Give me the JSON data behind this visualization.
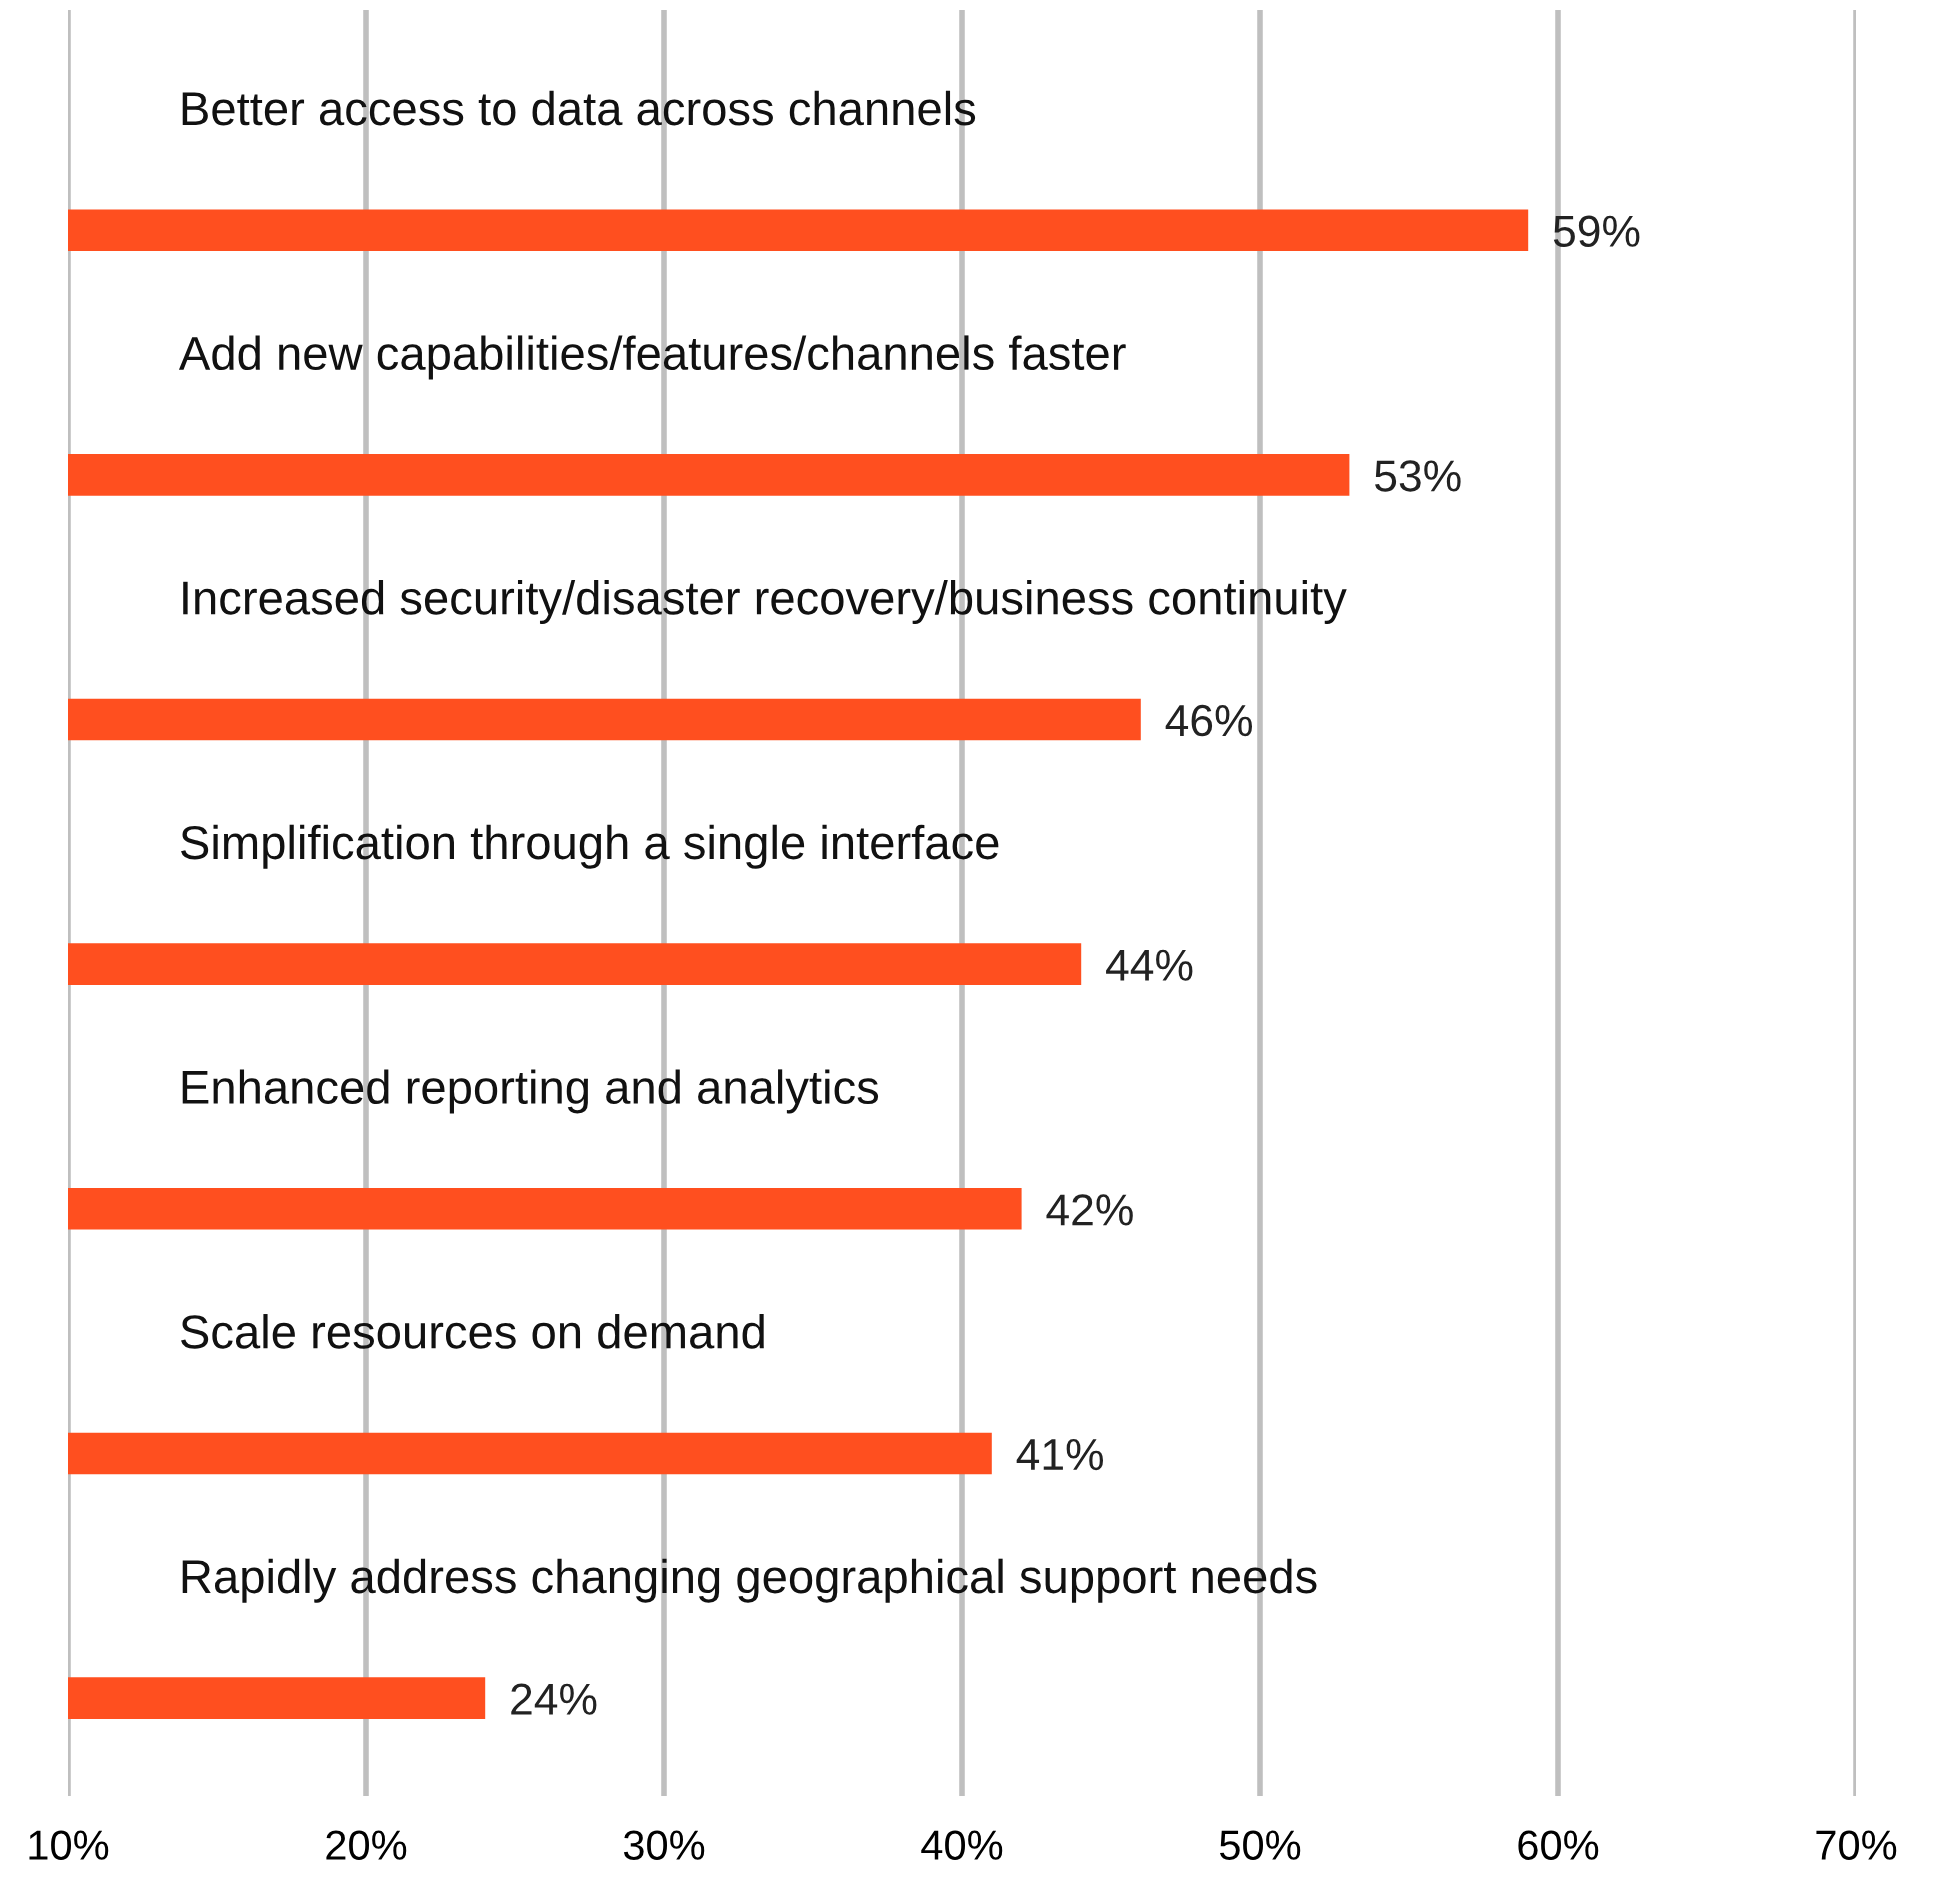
{
  "chart_data": {
    "type": "bar",
    "orientation": "horizontal",
    "categories": [
      "Better access to data across channels",
      "Add new capabilities/features/channels faster",
      "Increased security/disaster recovery/business continuity",
      "Simplification through a single interface",
      "Enhanced reporting and analytics",
      "Scale resources on demand",
      "Rapidly address changing geographical support needs"
    ],
    "values": [
      59,
      53,
      46,
      44,
      42,
      41,
      24
    ],
    "value_labels": [
      "59%",
      "53%",
      "46%",
      "44%",
      "42%",
      "41%",
      "24%"
    ],
    "color": "#ff4f1f",
    "xlim": [
      10,
      70
    ],
    "xticks": [
      {
        "value": 10,
        "label": "10%"
      },
      {
        "value": 20,
        "label": "20%"
      },
      {
        "value": 30,
        "label": "30%"
      },
      {
        "value": 40,
        "label": "40%"
      },
      {
        "value": 50,
        "label": "50%"
      },
      {
        "value": 60,
        "label": "60%"
      },
      {
        "value": 70,
        "label": "70%"
      }
    ],
    "grid": "x",
    "legend": false
  }
}
